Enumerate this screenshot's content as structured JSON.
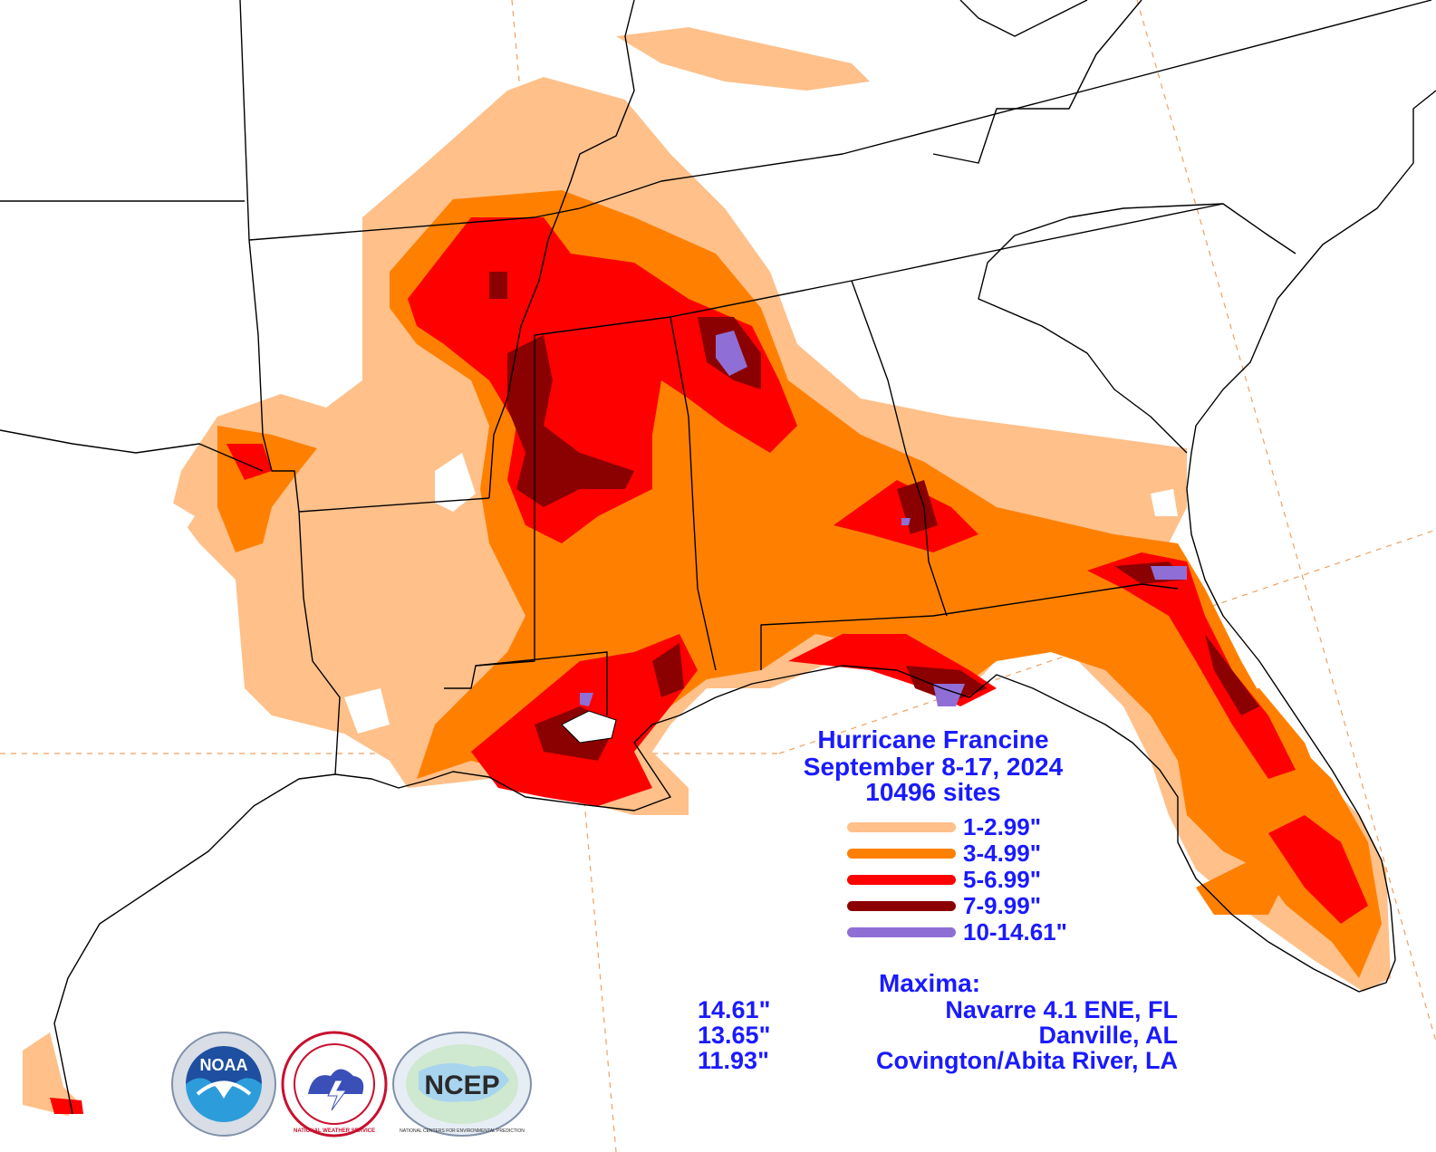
{
  "title": {
    "line1": "Hurricane Francine",
    "line2": "September 8-17, 2024",
    "line3": "10496 sites"
  },
  "legend": [
    {
      "label": "1-2.99\"",
      "color": "#ffc08a"
    },
    {
      "label": "3-4.99\"",
      "color": "#ff8000"
    },
    {
      "label": "5-6.99\"",
      "color": "#ff0000"
    },
    {
      "label": "7-9.99\"",
      "color": "#8b0000"
    },
    {
      "label": "10-14.61\"",
      "color": "#8f6fd6"
    }
  ],
  "maxima": {
    "title": "Maxima:",
    "rows": [
      {
        "value": "14.61\"",
        "site": "Navarre 4.1 ENE, FL"
      },
      {
        "value": "13.65\"",
        "site": "Danville, AL"
      },
      {
        "value": "11.93\"",
        "site": "Covington/Abita River, LA"
      }
    ]
  },
  "logos": {
    "noaa": "NOAA",
    "nws": "NATIONAL WEATHER SERVICE",
    "ncep": "NCEP",
    "ncep_ring": "NATIONAL CENTERS FOR ENVIRONMENTAL PREDICTION"
  },
  "colors": {
    "text": "#1a1aff",
    "border": "#000000",
    "gridline": "#f0a060"
  }
}
